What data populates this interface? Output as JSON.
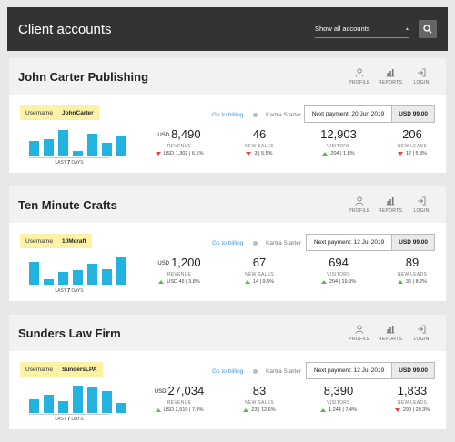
{
  "header": {
    "title": "Client accounts",
    "filter_value": "Show all accounts"
  },
  "action_labels": {
    "profile": "PROFILE",
    "reports": "REPORTS",
    "login": "LOGIN"
  },
  "labels": {
    "username": "Username",
    "billing_link": "Go to billing",
    "plan": "Kartra Starter",
    "last": "LAST",
    "days": "DAYS",
    "revenue": "REVENUE",
    "new_sales": "NEW SALES",
    "visitors": "VISITORS",
    "new_leads": "NEW LEADS",
    "currency": "USD"
  },
  "colors": {
    "bar": "#23b3e0",
    "up": "#5bb84b",
    "down": "#e04444",
    "username_bg": "#fbf2a6"
  },
  "accounts": [
    {
      "name": "John Carter Publishing",
      "username": "JohnCarter",
      "days_count": "7",
      "next_payment": "Next payment:  20 Jun 2019",
      "amount": "USD 99.00",
      "bars": [
        0.55,
        0.62,
        0.95,
        0.2,
        0.82,
        0.5,
        0.75
      ],
      "revenue": "8,490",
      "revenue_delta": "USD 1,302 | 6.1%",
      "revenue_dir": "down",
      "sales": "46",
      "sales_delta": "3 | 5.5%",
      "sales_dir": "down",
      "visitors": "12,903",
      "visitors_delta": "204 | 1.8%",
      "visitors_dir": "up",
      "leads": "206",
      "leads_delta": "12 | 5.3%",
      "leads_dir": "down"
    },
    {
      "name": "Ten Minute Crafts",
      "username": "10Mcraft",
      "days_count": "7",
      "next_payment": "Next payment:  12 Jul 2019",
      "amount": "USD 99.00",
      "bars": [
        0.82,
        0.2,
        0.45,
        0.52,
        0.78,
        0.55,
        1.0
      ],
      "revenue": "1,200",
      "revenue_delta": "USD 45 | 3.8%",
      "revenue_dir": "up",
      "sales": "67",
      "sales_delta": "14 | 9.5%",
      "sales_dir": "up",
      "visitors": "694",
      "visitors_delta": "204 | 19.9%",
      "visitors_dir": "up",
      "leads": "89",
      "leads_delta": "36 | 8.2%",
      "leads_dir": "up"
    },
    {
      "name": "Sunders Law Firm",
      "username": "SundersLPA",
      "days_count": "7",
      "next_payment": "Next payment:  12 Jul 2019",
      "amount": "USD 99.00",
      "bars": [
        0.5,
        0.65,
        0.42,
        1.0,
        0.92,
        0.8,
        0.35
      ],
      "revenue": "27,034",
      "revenue_delta": "USD 2,510 | 7.9%",
      "revenue_dir": "up",
      "sales": "83",
      "sales_delta": "23 | 12.6%",
      "sales_dir": "up",
      "visitors": "8,390",
      "visitors_delta": "1,244 | 7.4%",
      "visitors_dir": "up",
      "leads": "1,833",
      "leads_delta": "290 | 20.3%",
      "leads_dir": "down"
    }
  ]
}
